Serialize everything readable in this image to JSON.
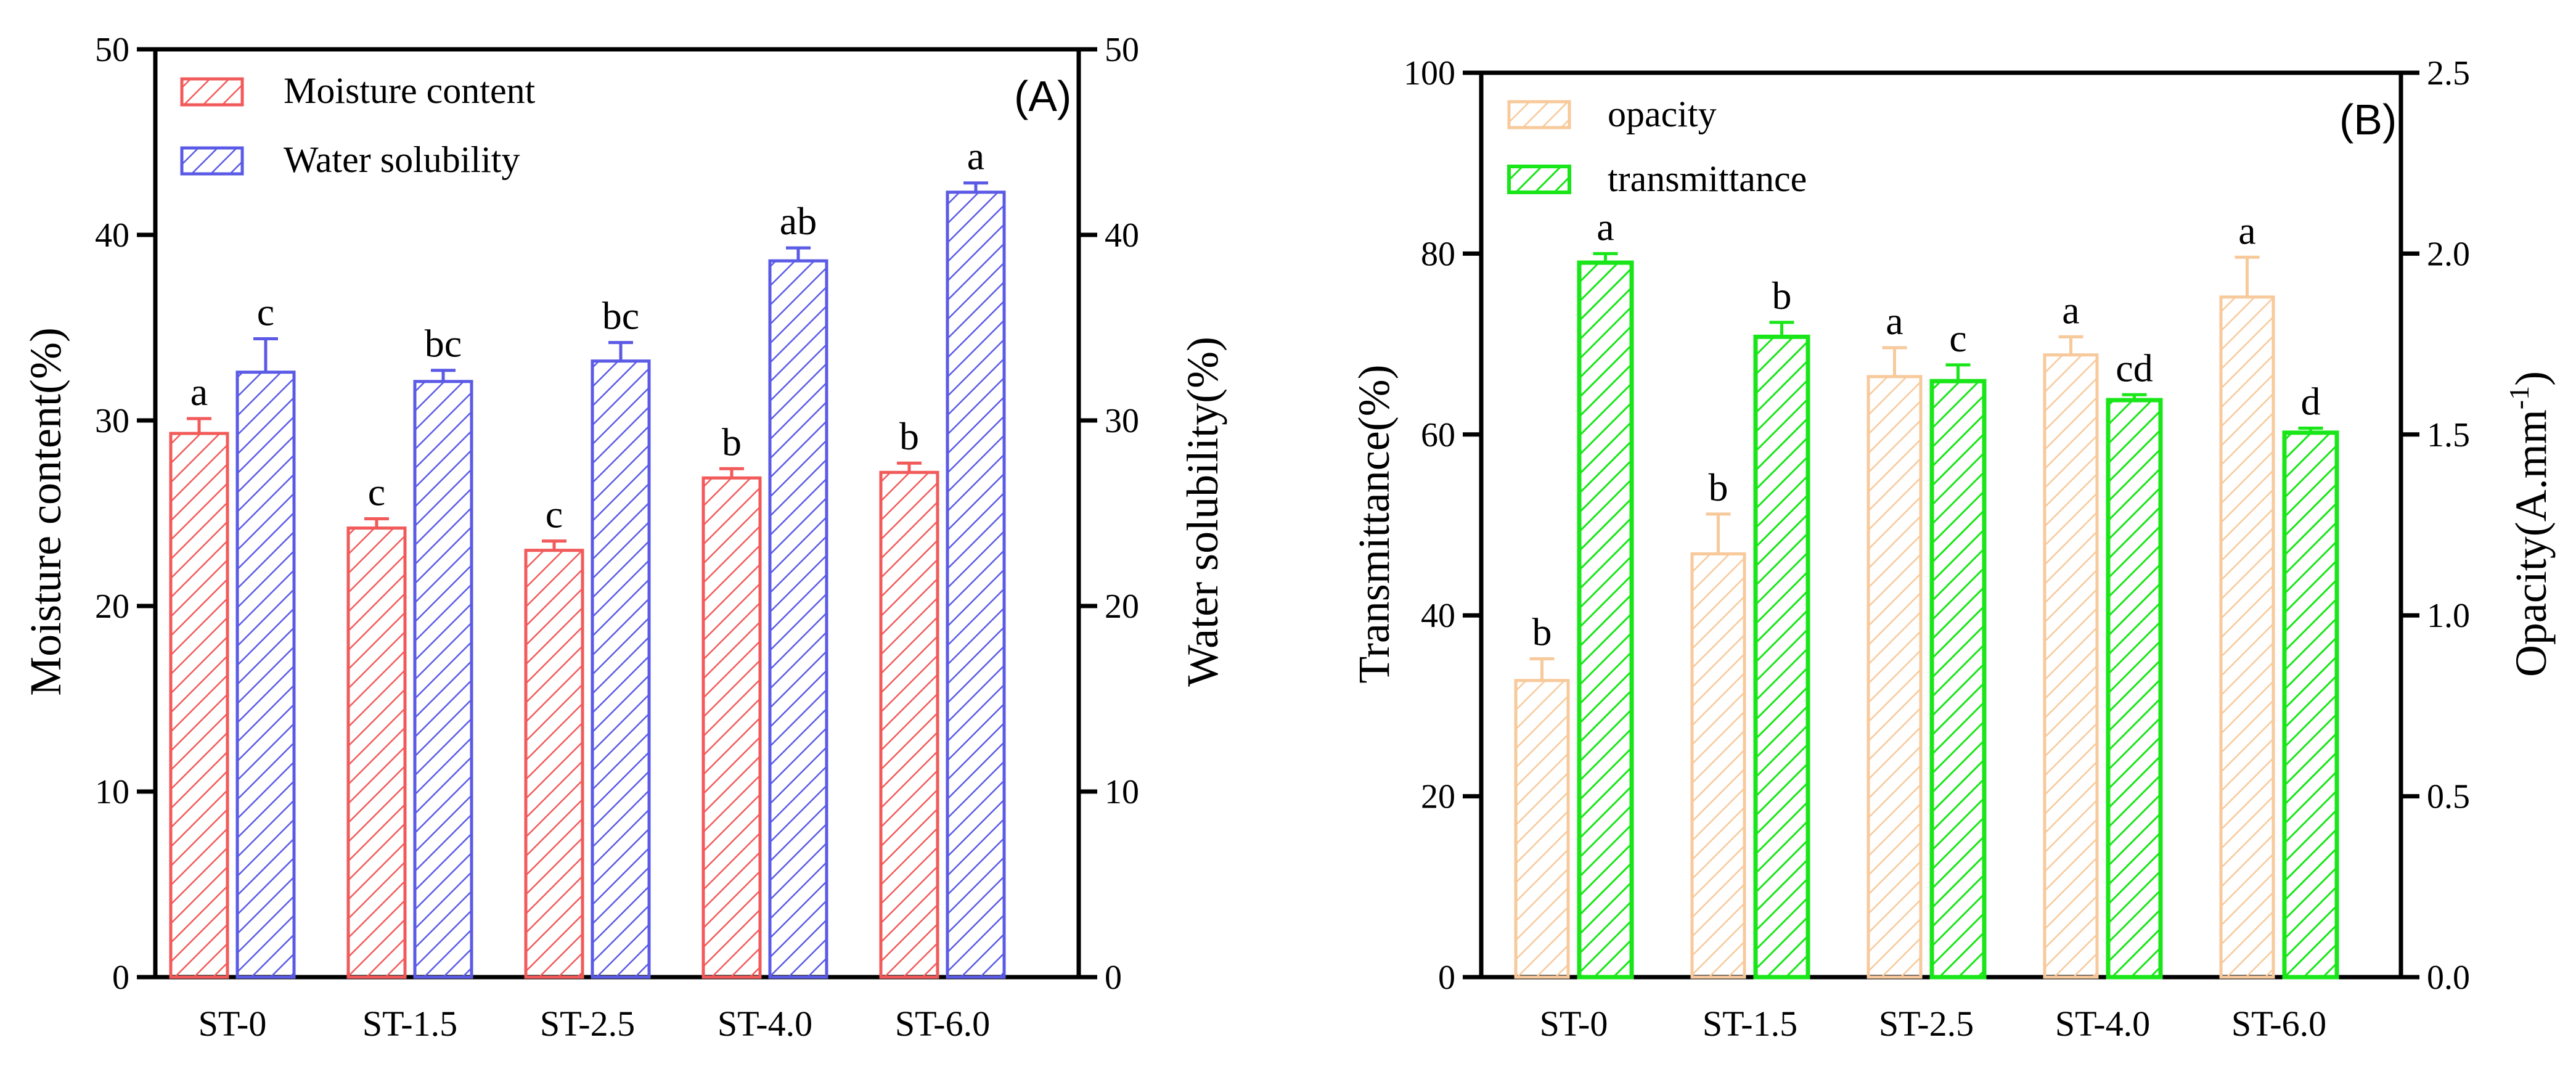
{
  "chart_data": [
    {
      "type": "bar",
      "panel": "(A)",
      "title": "",
      "xlabel": "",
      "categories": [
        "ST-0",
        "ST-1.5",
        "ST-2.5",
        "ST-4.0",
        "ST-6.0"
      ],
      "y_left": {
        "label": "Moisture content(%)",
        "lim": [
          0,
          50
        ],
        "ticks": [
          "0",
          "10",
          "20",
          "30",
          "40",
          "50"
        ]
      },
      "y_right": {
        "label": "Water solubility(%)",
        "lim": [
          0,
          50
        ],
        "ticks": [
          "0",
          "10",
          "20",
          "30",
          "40",
          "50"
        ]
      },
      "legend_position": "top-left",
      "series": [
        {
          "name": "Moisture content",
          "axis": "left",
          "color": "#f25a5a",
          "values": [
            29.3,
            24.2,
            23.0,
            26.9,
            27.2
          ],
          "errors": [
            0.8,
            0.5,
            0.5,
            0.5,
            0.5
          ],
          "letters": [
            "a",
            "c",
            "c",
            "b",
            "b"
          ]
        },
        {
          "name": "Water solubility",
          "axis": "right",
          "color": "#5a5ae6",
          "values": [
            32.6,
            32.1,
            33.2,
            38.6,
            42.3
          ],
          "errors": [
            1.8,
            0.6,
            1.0,
            0.7,
            0.5
          ],
          "letters": [
            "c",
            "bc",
            "bc",
            "ab",
            "a"
          ]
        }
      ]
    },
    {
      "type": "bar",
      "panel": "(B)",
      "title": "",
      "xlabel": "",
      "categories": [
        "ST-0",
        "ST-1.5",
        "ST-2.5",
        "ST-4.0",
        "ST-6.0"
      ],
      "y_left": {
        "label": "Transmittance(%)",
        "lim": [
          0,
          100
        ],
        "ticks": [
          "0",
          "20",
          "40",
          "60",
          "80",
          "100"
        ]
      },
      "y_right": {
        "label_main": "Opacity(A.mm",
        "label_sup": "-1",
        "label_end": ")",
        "lim": [
          0,
          2.5
        ],
        "ticks": [
          "0.0",
          "0.5",
          "1.0",
          "1.5",
          "2.0",
          "2.5"
        ]
      },
      "legend_position": "top-left",
      "series": [
        {
          "name": "opacity",
          "axis": "right",
          "color": "#f7c99b",
          "values": [
            0.82,
            1.17,
            1.66,
            1.72,
            1.88
          ],
          "errors": [
            0.06,
            0.11,
            0.08,
            0.05,
            0.11
          ],
          "letters": [
            "b",
            "b",
            "a",
            "a",
            "a"
          ]
        },
        {
          "name": "transmittance",
          "axis": "left",
          "color": "#19e619",
          "values": [
            79.0,
            70.8,
            65.9,
            63.8,
            60.2
          ],
          "errors": [
            1.0,
            1.6,
            1.8,
            0.6,
            0.5
          ],
          "letters": [
            "a",
            "b",
            "c",
            "cd",
            "d"
          ]
        }
      ]
    }
  ]
}
